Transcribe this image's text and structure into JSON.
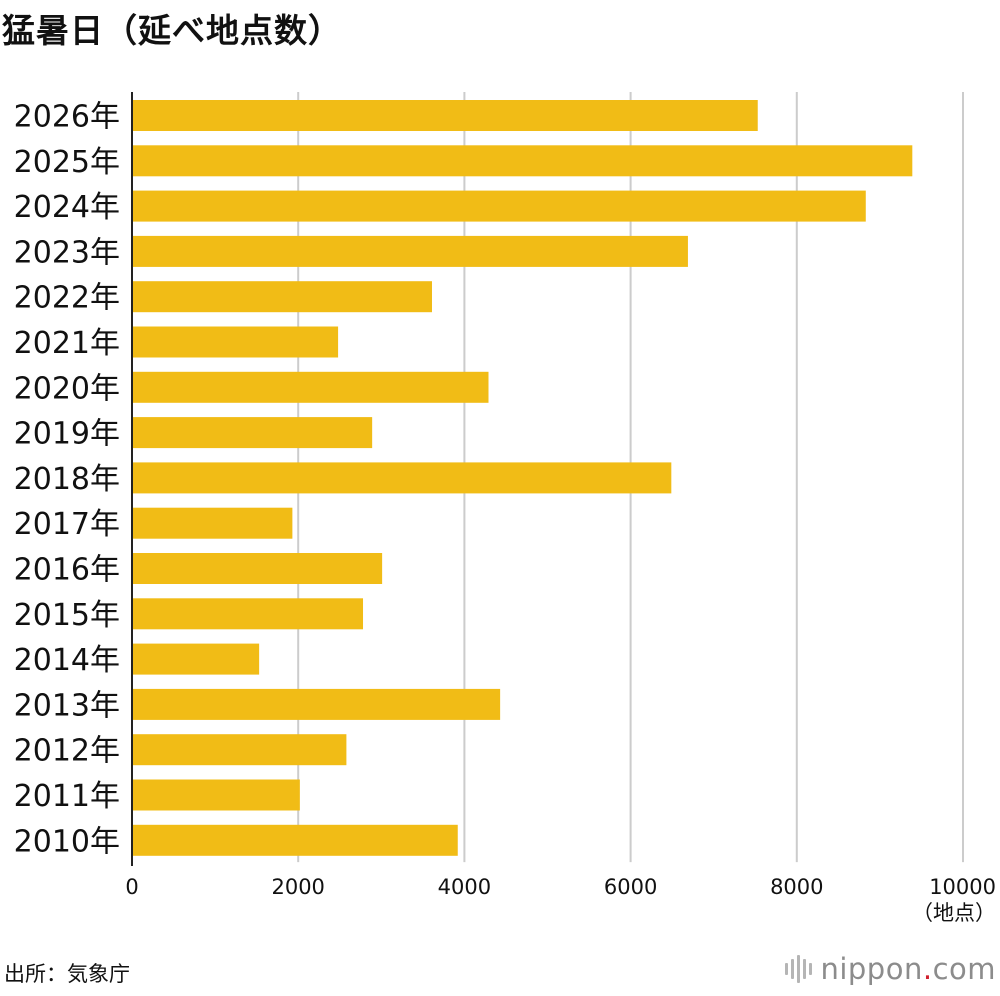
{
  "chart_data": {
    "type": "bar",
    "orientation": "horizontal",
    "title": "猛暑日（延べ地点数）",
    "categories": [
      "2026年",
      "2025年",
      "2024年",
      "2023年",
      "2022年",
      "2021年",
      "2020年",
      "2019年",
      "2018年",
      "2017年",
      "2016年",
      "2015年",
      "2014年",
      "2013年",
      "2012年",
      "2011年",
      "2010年"
    ],
    "values": [
      7530,
      9390,
      8830,
      6690,
      3610,
      2480,
      4290,
      2890,
      6490,
      1930,
      3010,
      2780,
      1530,
      4430,
      2580,
      2020,
      3920
    ],
    "xlim": [
      0,
      10000
    ],
    "xticks": [
      "0",
      "2000",
      "4000",
      "6000",
      "8000",
      "10000"
    ],
    "unit_label": "（地点）",
    "grid": true,
    "bar_color": "#F1BC16",
    "gridline_color": "#cccccc"
  },
  "footer": {
    "source": "出所：気象庁",
    "brand_name": "nippon",
    "brand_dot": ".",
    "brand_suffix": "com",
    "brand_dot_color": "#d0202e"
  }
}
